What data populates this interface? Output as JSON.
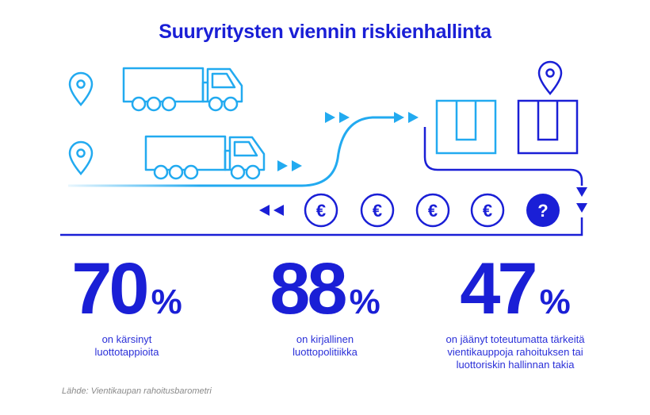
{
  "title": "Suuryritysten viennin riskienhallinta",
  "colors": {
    "blue": "#1a1fd6",
    "light_blue": "#22aaf0"
  },
  "icons": [
    "location-pin-icon",
    "truck-icon",
    "arrow-right-icon",
    "arrow-left-icon",
    "box-icon",
    "euro-coin-icon",
    "question-coin-icon"
  ],
  "coins": {
    "currency_symbol": "€",
    "question_symbol": "?"
  },
  "stats": [
    {
      "value": "70",
      "unit": "%",
      "lines": [
        "on kärsinyt",
        "luottotappioita"
      ]
    },
    {
      "value": "88",
      "unit": "%",
      "lines": [
        "on kirjallinen",
        "luottopolitiikka"
      ]
    },
    {
      "value": "47",
      "unit": "%",
      "lines": [
        "on jäänyt toteutumatta tärkeitä",
        "vientikauppoja rahoituksen tai",
        "luottoriskin hallinnan takia"
      ]
    }
  ],
  "source": "Lähde: Vientikaupan rahoitusbarometri"
}
